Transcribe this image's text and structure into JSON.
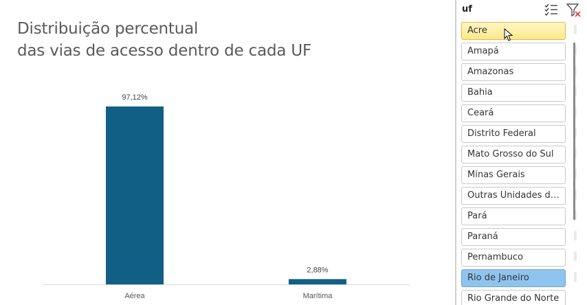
{
  "chart": {
    "title_line1": "Distribuição percentual",
    "title_line2": "das vias de acesso dentro de cada UF"
  },
  "chart_data": {
    "type": "bar",
    "title": "Distribuição percentual das vias de acesso dentro de cada UF",
    "categories": [
      "Aérea",
      "Marítima"
    ],
    "values": [
      97.12,
      2.88
    ],
    "value_labels": [
      "97,12%",
      "2,88%"
    ],
    "xlabel": "",
    "ylabel": "",
    "ylim": [
      0,
      100
    ],
    "grid": false,
    "bar_color": "#125f86"
  },
  "slicer": {
    "title": "uf",
    "items": [
      {
        "label": "Acre",
        "state": "hover"
      },
      {
        "label": "Amapá",
        "state": "normal"
      },
      {
        "label": "Amazonas",
        "state": "normal"
      },
      {
        "label": "Bahia",
        "state": "normal"
      },
      {
        "label": "Ceará",
        "state": "normal"
      },
      {
        "label": "Distrito Federal",
        "state": "normal"
      },
      {
        "label": "Mato Grosso do Sul",
        "state": "normal"
      },
      {
        "label": "Minas Gerais",
        "state": "normal"
      },
      {
        "label": "Outras Unidades da Federação",
        "state": "normal"
      },
      {
        "label": "Pará",
        "state": "normal"
      },
      {
        "label": "Paraná",
        "state": "normal"
      },
      {
        "label": "Pernambuco",
        "state": "normal"
      },
      {
        "label": "Rio de Janeiro",
        "state": "selected"
      },
      {
        "label": "Rio Grande do Norte",
        "state": "normal"
      }
    ]
  },
  "colors": {
    "bar": "#125f86",
    "hover_item": "#fde98a",
    "selected_item": "#8fc4ee"
  },
  "icons": {
    "multi_select": "multi-select-icon",
    "clear_filter": "clear-filter-icon"
  }
}
